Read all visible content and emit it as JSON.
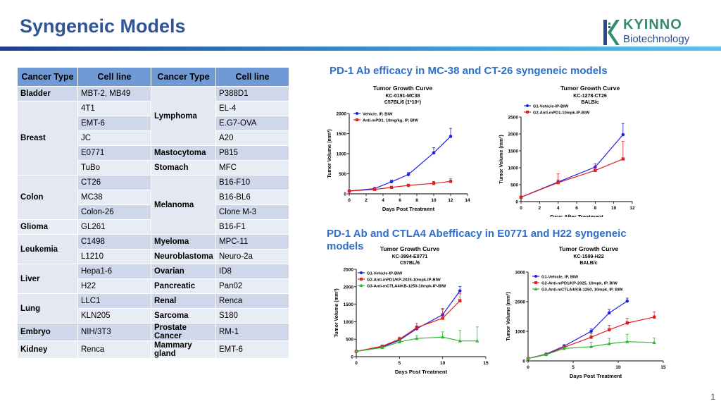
{
  "page": {
    "title": "Syngeneic Models",
    "page_number": "1",
    "section1": "PD-1 Ab efficacy in MC-38 and CT-26 syngeneic models",
    "section2": "PD-1 Ab and CTLA4 Abefficacy in E0771 and H22 syngeneic models"
  },
  "logo": {
    "line1": "KYINNO",
    "line2": "Biotechnology"
  },
  "table": {
    "headers": [
      "Cancer Type",
      "Cell line",
      "Cancer Type",
      "Cell line"
    ],
    "rows": [
      [
        "Bladder",
        "MBT-2, MB49",
        "",
        "P388D1"
      ],
      [
        "",
        "4T1",
        "Lymphoma",
        "EL-4"
      ],
      [
        "Breast",
        "EMT-6",
        "",
        "E.G7-OVA"
      ],
      [
        "",
        "JC",
        "",
        "A20"
      ],
      [
        "",
        "E0771",
        "Mastocytoma",
        "P815"
      ],
      [
        "",
        "TuBo",
        "Stomach",
        "MFC"
      ],
      [
        "",
        "CT26",
        "",
        "B16-F10"
      ],
      [
        "Colon",
        "MC38",
        "Melanoma",
        "B16-BL6"
      ],
      [
        "",
        "Colon-26",
        "",
        "Clone M-3"
      ],
      [
        "Glioma",
        "GL261",
        "",
        "B16-F1"
      ],
      [
        "",
        "C1498",
        "Myeloma",
        "MPC-11"
      ],
      [
        "Leukemia",
        "L1210",
        "Neuroblastoma",
        "Neuro-2a"
      ],
      [
        "",
        "Hepa1-6",
        "Ovarian",
        "ID8"
      ],
      [
        "Liver",
        "H22",
        "Pancreatic",
        "Pan02"
      ],
      [
        "",
        "LLC1",
        "Renal",
        "Renca"
      ],
      [
        "Lung",
        "KLN205",
        "Sarcoma",
        "S180"
      ],
      [
        "Embryo",
        "NIH/3T3",
        "Prostate Cancer",
        "RM-1"
      ],
      [
        "Kidney",
        "Renca",
        "Mammary gland",
        "EMT-6"
      ]
    ]
  },
  "chart_data": [
    {
      "type": "line",
      "title": "Tumor Growth Curve",
      "subtitle": [
        "KC-0191-MC38",
        "C57BL/6 (1*10⁶)"
      ],
      "xlabel": "Days Post Treatment",
      "ylabel": "Tumor Volume (mm³)",
      "xlim": [
        0,
        14
      ],
      "xticks": [
        0,
        2,
        4,
        6,
        8,
        10,
        12,
        14
      ],
      "ylim": [
        0,
        2000
      ],
      "yticks": [
        0,
        500,
        1000,
        1500,
        2000
      ],
      "series": [
        {
          "name": "Vehicle, IP, BIW",
          "color": "#1f1fe0",
          "marker": "circle",
          "x": [
            0,
            3,
            5,
            7,
            10,
            12
          ],
          "y": [
            70,
            130,
            300,
            480,
            1020,
            1430
          ],
          "err": [
            15,
            20,
            40,
            50,
            130,
            200
          ]
        },
        {
          "name": "Anti-mPD1, 10mg/kg, IP, BIW",
          "color": "#e01f1f",
          "marker": "square",
          "x": [
            0,
            3,
            5,
            7,
            10,
            12
          ],
          "y": [
            70,
            110,
            160,
            210,
            260,
            310
          ],
          "err": [
            15,
            15,
            25,
            30,
            50,
            70
          ]
        }
      ]
    },
    {
      "type": "line",
      "title": "Tumor Growth Curve",
      "subtitle": [
        "KC-1278-CT26",
        "BALB/c"
      ],
      "xlabel": "Days After Treatment",
      "ylabel": "Tumor Volume (mm³)",
      "xlim": [
        0,
        12
      ],
      "xticks": [
        0,
        2,
        4,
        6,
        8,
        10,
        12
      ],
      "ylim": [
        0,
        2500
      ],
      "yticks": [
        0,
        500,
        1000,
        1500,
        2000,
        2500
      ],
      "series": [
        {
          "name": "G1-Vehicle-IP-BIW",
          "color": "#1f1fe0",
          "marker": "circle",
          "x": [
            0,
            4,
            8,
            11
          ],
          "y": [
            130,
            580,
            1020,
            1980
          ],
          "err": [
            20,
            60,
            100,
            330
          ]
        },
        {
          "name": "G2-Anti-mPD1-10mpk-IP-BIW",
          "color": "#e01f1f",
          "marker": "square",
          "x": [
            0,
            4,
            8,
            11
          ],
          "y": [
            130,
            560,
            920,
            1260
          ],
          "err": [
            20,
            260,
            110,
            520
          ]
        }
      ]
    },
    {
      "type": "line",
      "title": "Tumor Growth Curve",
      "subtitle": [
        "KC-3994-E0771",
        "C57BL/6"
      ],
      "xlabel": "Days Post Treatment",
      "ylabel": "Tumor Volume (mm³)",
      "xlim": [
        0,
        15
      ],
      "xticks": [
        0,
        5,
        10,
        15
      ],
      "ylim": [
        0,
        2500
      ],
      "yticks": [
        0,
        500,
        1000,
        1500,
        2000,
        2500
      ],
      "series": [
        {
          "name": "G1-Vehicle-IP-BIW",
          "color": "#1f1fe0",
          "marker": "circle",
          "x": [
            0,
            3,
            5,
            7,
            10,
            12
          ],
          "y": [
            150,
            280,
            470,
            800,
            1200,
            1880
          ],
          "err": [
            20,
            30,
            50,
            80,
            150,
            130
          ]
        },
        {
          "name": "G2-Anti-mPD1/KP-2025-10mpk-IP-BIW",
          "color": "#e01f1f",
          "marker": "square",
          "x": [
            0,
            3,
            5,
            7,
            10,
            12
          ],
          "y": [
            150,
            300,
            500,
            830,
            1100,
            1600
          ],
          "err": [
            20,
            30,
            60,
            120,
            280,
            200
          ]
        },
        {
          "name": "G3-Anti-mCTLA4/KB-1250-10mpk-IP-BIW",
          "color": "#2eb82e",
          "marker": "triangle",
          "x": [
            0,
            3,
            5,
            7,
            10,
            12,
            14
          ],
          "y": [
            150,
            260,
            420,
            520,
            560,
            450,
            450
          ],
          "err": [
            20,
            30,
            50,
            80,
            150,
            300,
            400
          ]
        }
      ]
    },
    {
      "type": "line",
      "title": "Tumor Growth Curve",
      "subtitle": [
        "KC-1599-H22",
        "BALB/c"
      ],
      "xlabel": "Days Post Treatment",
      "ylabel": "Tumor Volume (mm³)",
      "xlim": [
        0,
        15
      ],
      "xticks": [
        0,
        5,
        10,
        15
      ],
      "ylim": [
        0,
        3000
      ],
      "yticks": [
        0,
        1000,
        2000,
        3000
      ],
      "series": [
        {
          "name": "G1-Vehicle, IP, BIW",
          "color": "#1f1fe0",
          "marker": "circle",
          "x": [
            0,
            2,
            4,
            7,
            9,
            11
          ],
          "y": [
            80,
            230,
            500,
            1000,
            1620,
            2020
          ],
          "err": [
            15,
            25,
            50,
            80,
            120,
            100
          ]
        },
        {
          "name": "G2-Anti-mPD1/KP-2025, 10mpk, IP, BIW",
          "color": "#e01f1f",
          "marker": "square",
          "x": [
            0,
            2,
            4,
            7,
            9,
            11,
            14
          ],
          "y": [
            80,
            220,
            460,
            800,
            1050,
            1280,
            1480
          ],
          "err": [
            15,
            25,
            50,
            120,
            150,
            160,
            180
          ]
        },
        {
          "name": "G3-Anti-mCTLA4/KB-1250, 10mpk, IP, BIW",
          "color": "#2eb82e",
          "marker": "triangle",
          "x": [
            0,
            2,
            4,
            7,
            9,
            11,
            14
          ],
          "y": [
            80,
            210,
            420,
            480,
            580,
            650,
            620
          ],
          "err": [
            15,
            25,
            50,
            150,
            180,
            250,
            150
          ]
        }
      ]
    }
  ]
}
